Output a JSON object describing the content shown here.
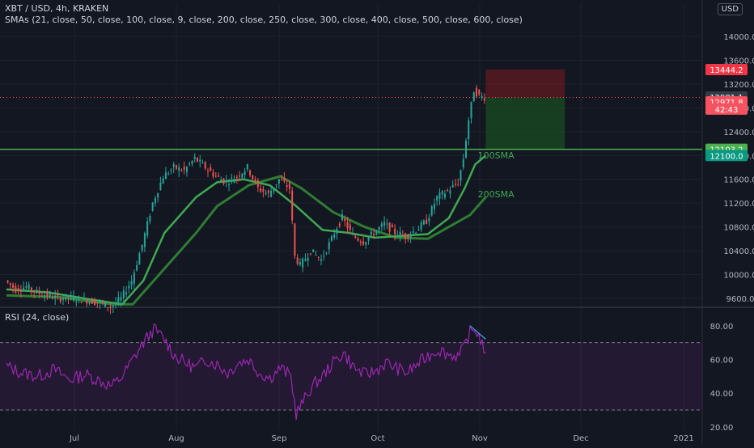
{
  "header": {
    "title": "XBT / USD, 4h, KRAKEN",
    "sma_legend": "SMAs (21, close, 50, close, 100, close, 9, close, 200, close, 250, close, 300, close, 400, close, 500, close, 600, close)",
    "rsi_legend": "RSI (24, close)",
    "currency": "USD"
  },
  "colors": {
    "background": "#131722",
    "grid": "#1e222d",
    "up_candle": "#26a69a",
    "down_candle": "#ef5350",
    "resistance_line": "#4caf50",
    "rsi_line": "#9c27b0",
    "sma_100": "#3fa851",
    "sma_200": "#2e7d32",
    "stop_zone": "#b71c1c",
    "target_zone": "#1b5e20"
  },
  "chart_data": [
    {
      "type": "line",
      "panel": "price",
      "x_ticks": [
        "Jul",
        "Aug",
        "Sep",
        "Oct",
        "Nov",
        "Dec",
        "2021"
      ],
      "y_ticks": [
        9600,
        10000,
        10400,
        10800,
        11200,
        11600,
        12000,
        12400,
        12800,
        13200,
        13600,
        14000
      ],
      "y_tick_labels": [
        "9600.0",
        "10000.0",
        "10400.0",
        "10800.0",
        "11200.0",
        "11600.0",
        "12000.0",
        "12400.0",
        "12800.0",
        "13200.0",
        "13600.0",
        "14000.0"
      ],
      "ylim": [
        9450,
        14150
      ],
      "series": [
        {
          "name": "XBT/USD",
          "points": [
            [
              0,
              9900
            ],
            [
              2,
              9750
            ],
            [
              4,
              9800
            ],
            [
              6,
              9700
            ],
            [
              8,
              9650
            ],
            [
              10,
              9600
            ],
            [
              12,
              9620
            ],
            [
              14,
              9580
            ],
            [
              16,
              9560
            ],
            [
              18,
              9520
            ],
            [
              20,
              9450
            ],
            [
              22,
              9600
            ],
            [
              24,
              9900
            ],
            [
              26,
              10500
            ],
            [
              28,
              11200
            ],
            [
              30,
              11650
            ],
            [
              32,
              11800
            ],
            [
              34,
              11750
            ],
            [
              36,
              11950
            ],
            [
              38,
              11800
            ],
            [
              40,
              11650
            ],
            [
              42,
              11550
            ],
            [
              44,
              11650
            ],
            [
              46,
              11800
            ],
            [
              48,
              11450
            ],
            [
              50,
              11350
            ],
            [
              52,
              11600
            ],
            [
              54,
              11450
            ],
            [
              55,
              10300
            ],
            [
              56,
              10150
            ],
            [
              58,
              10400
            ],
            [
              60,
              10250
            ],
            [
              62,
              10600
            ],
            [
              63,
              10800
            ],
            [
              64,
              10950
            ],
            [
              66,
              10650
            ],
            [
              68,
              10550
            ],
            [
              70,
              10700
            ],
            [
              72,
              10850
            ],
            [
              74,
              10700
            ],
            [
              76,
              10650
            ],
            [
              78,
              10750
            ],
            [
              80,
              10900
            ],
            [
              82,
              11300
            ],
            [
              84,
              11400
            ],
            [
              86,
              11550
            ],
            [
              87,
              11950
            ],
            [
              88,
              12600
            ],
            [
              89,
              13100
            ],
            [
              90,
              13000
            ],
            [
              91,
              12975
            ]
          ]
        },
        {
          "name": "100SMA",
          "points": [
            [
              0,
              9750
            ],
            [
              8,
              9700
            ],
            [
              16,
              9580
            ],
            [
              22,
              9500
            ],
            [
              26,
              9900
            ],
            [
              30,
              10700
            ],
            [
              36,
              11300
            ],
            [
              40,
              11550
            ],
            [
              45,
              11600
            ],
            [
              50,
              11500
            ],
            [
              55,
              11150
            ],
            [
              60,
              10750
            ],
            [
              65,
              10700
            ],
            [
              70,
              10620
            ],
            [
              75,
              10650
            ],
            [
              80,
              10680
            ],
            [
              84,
              10950
            ],
            [
              87,
              11450
            ],
            [
              89,
              11850
            ],
            [
              91,
              12000
            ]
          ]
        },
        {
          "name": "200SMA",
          "points": [
            [
              0,
              9650
            ],
            [
              10,
              9620
            ],
            [
              20,
              9500
            ],
            [
              24,
              9500
            ],
            [
              30,
              10100
            ],
            [
              36,
              10700
            ],
            [
              40,
              11150
            ],
            [
              46,
              11500
            ],
            [
              52,
              11650
            ],
            [
              56,
              11450
            ],
            [
              62,
              11050
            ],
            [
              68,
              10800
            ],
            [
              74,
              10620
            ],
            [
              80,
              10600
            ],
            [
              84,
              10800
            ],
            [
              88,
              11000
            ],
            [
              91,
              11300
            ]
          ]
        }
      ],
      "annotations": [
        {
          "text": "100SMA",
          "x": 89.5,
          "y": 11950
        },
        {
          "text": "200SMA",
          "x": 89.5,
          "y": 11300
        }
      ],
      "horizontal_lines": [
        {
          "name": "resistance",
          "y": 12103.2
        },
        {
          "name": "last-price",
          "y": 12975,
          "style": "dotted"
        }
      ],
      "risk_reward": {
        "x_start": 91,
        "x_end": 106,
        "stop": 13444.2,
        "entry": 12971.8,
        "target": 12103.2
      },
      "price_tags": [
        {
          "text": "13444.2",
          "y": 13444.2,
          "color": "#f23645"
        },
        {
          "text": "12981.1",
          "y": 12981.1,
          "color": "#363a45"
        },
        {
          "text": "12971.8",
          "y": 12900,
          "color": "#f7525f"
        },
        {
          "text": "42:43",
          "y": 12780,
          "color": "#f7525f"
        },
        {
          "text": "12103.2",
          "y": 12103.2,
          "color": "#4caf50"
        },
        {
          "text": "12100.0",
          "y": 12000,
          "color": "#089981"
        }
      ]
    },
    {
      "type": "line",
      "panel": "rsi",
      "y_ticks": [
        20,
        40,
        60,
        80
      ],
      "y_tick_labels": [
        "20.00",
        "40.00",
        "60.00",
        "80.00"
      ],
      "ylim": [
        18,
        90
      ],
      "bands": [
        30,
        70
      ],
      "series": [
        {
          "name": "RSI",
          "points": [
            [
              0,
              56
            ],
            [
              3,
              52
            ],
            [
              6,
              50
            ],
            [
              9,
              54
            ],
            [
              12,
              48
            ],
            [
              15,
              51
            ],
            [
              18,
              47
            ],
            [
              20,
              44
            ],
            [
              22,
              50
            ],
            [
              24,
              60
            ],
            [
              26,
              70
            ],
            [
              28,
              78
            ],
            [
              30,
              72
            ],
            [
              32,
              62
            ],
            [
              34,
              58
            ],
            [
              36,
              55
            ],
            [
              38,
              60
            ],
            [
              40,
              57
            ],
            [
              42,
              52
            ],
            [
              44,
              58
            ],
            [
              46,
              60
            ],
            [
              48,
              52
            ],
            [
              50,
              49
            ],
            [
              52,
              55
            ],
            [
              54,
              50
            ],
            [
              55,
              28
            ],
            [
              56,
              33
            ],
            [
              58,
              44
            ],
            [
              60,
              50
            ],
            [
              62,
              58
            ],
            [
              64,
              64
            ],
            [
              66,
              55
            ],
            [
              68,
              51
            ],
            [
              70,
              53
            ],
            [
              72,
              58
            ],
            [
              74,
              55
            ],
            [
              76,
              52
            ],
            [
              78,
              57
            ],
            [
              80,
              62
            ],
            [
              82,
              66
            ],
            [
              84,
              63
            ],
            [
              86,
              62
            ],
            [
              87,
              68
            ],
            [
              88,
              76
            ],
            [
              89,
              78
            ],
            [
              90,
              72
            ],
            [
              91,
              64
            ]
          ]
        }
      ],
      "trend_lines": [
        {
          "x1": 88,
          "y1": 80,
          "x2": 91,
          "y2": 72
        }
      ]
    }
  ]
}
